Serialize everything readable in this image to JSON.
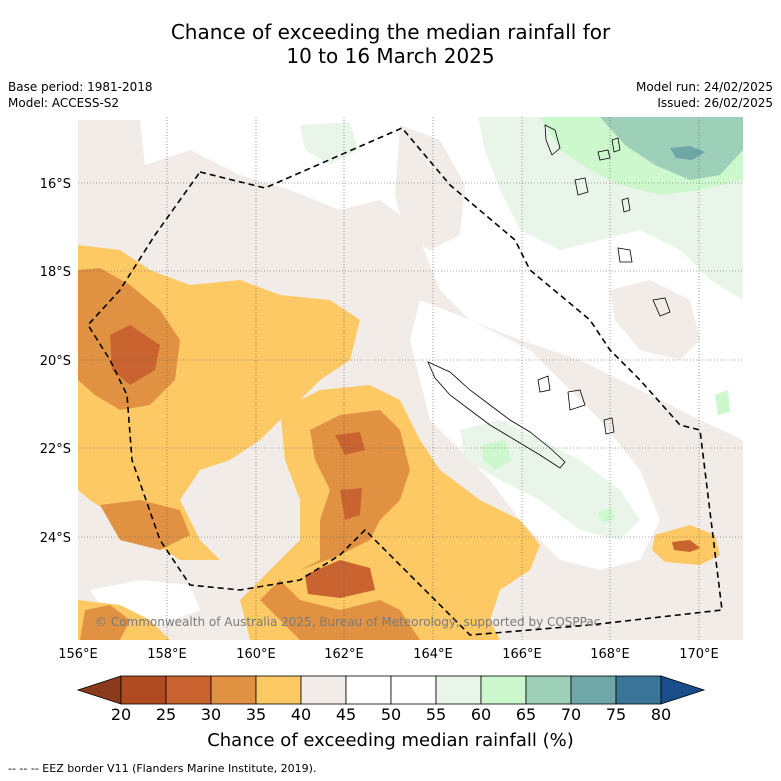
{
  "title": {
    "line1": "Chance of exceeding the median rainfall for",
    "line2": "10 to 16 March 2025"
  },
  "meta_left": {
    "base_period": "Base period: 1981-2018",
    "model": "Model: ACCESS-S2"
  },
  "meta_right": {
    "model_run": "Model run: 24/02/2025",
    "issued": "Issued: 26/02/2025"
  },
  "map": {
    "lat_labels": [
      "16°S",
      "18°S",
      "20°S",
      "22°S",
      "24°S"
    ],
    "lon_labels": [
      "156°E",
      "158°E",
      "160°E",
      "162°E",
      "164°E",
      "166°E",
      "168°E",
      "170°E"
    ],
    "copyright": "© Commonwealth of Australia 2025, Bureau of Meteorology, supported by COSPPac"
  },
  "colorbar": {
    "ticks": [
      "20",
      "25",
      "30",
      "35",
      "40",
      "45",
      "50",
      "55",
      "60",
      "65",
      "70",
      "75",
      "80"
    ],
    "label": "Chance of exceeding median rainfall (%)",
    "colors": [
      "#8b3a1c",
      "#b04a20",
      "#c96430",
      "#e09242",
      "#fdc964",
      "#f2ece8",
      "#ffffff",
      "#ffffff",
      "#eaf5ea",
      "#cdf8cd",
      "#9ecfb8",
      "#6ea7a6",
      "#3a7598",
      "#1a4e8a"
    ]
  },
  "footer": "-- -- -- EEZ border V11 (Flanders Marine Institute, 2019)."
}
